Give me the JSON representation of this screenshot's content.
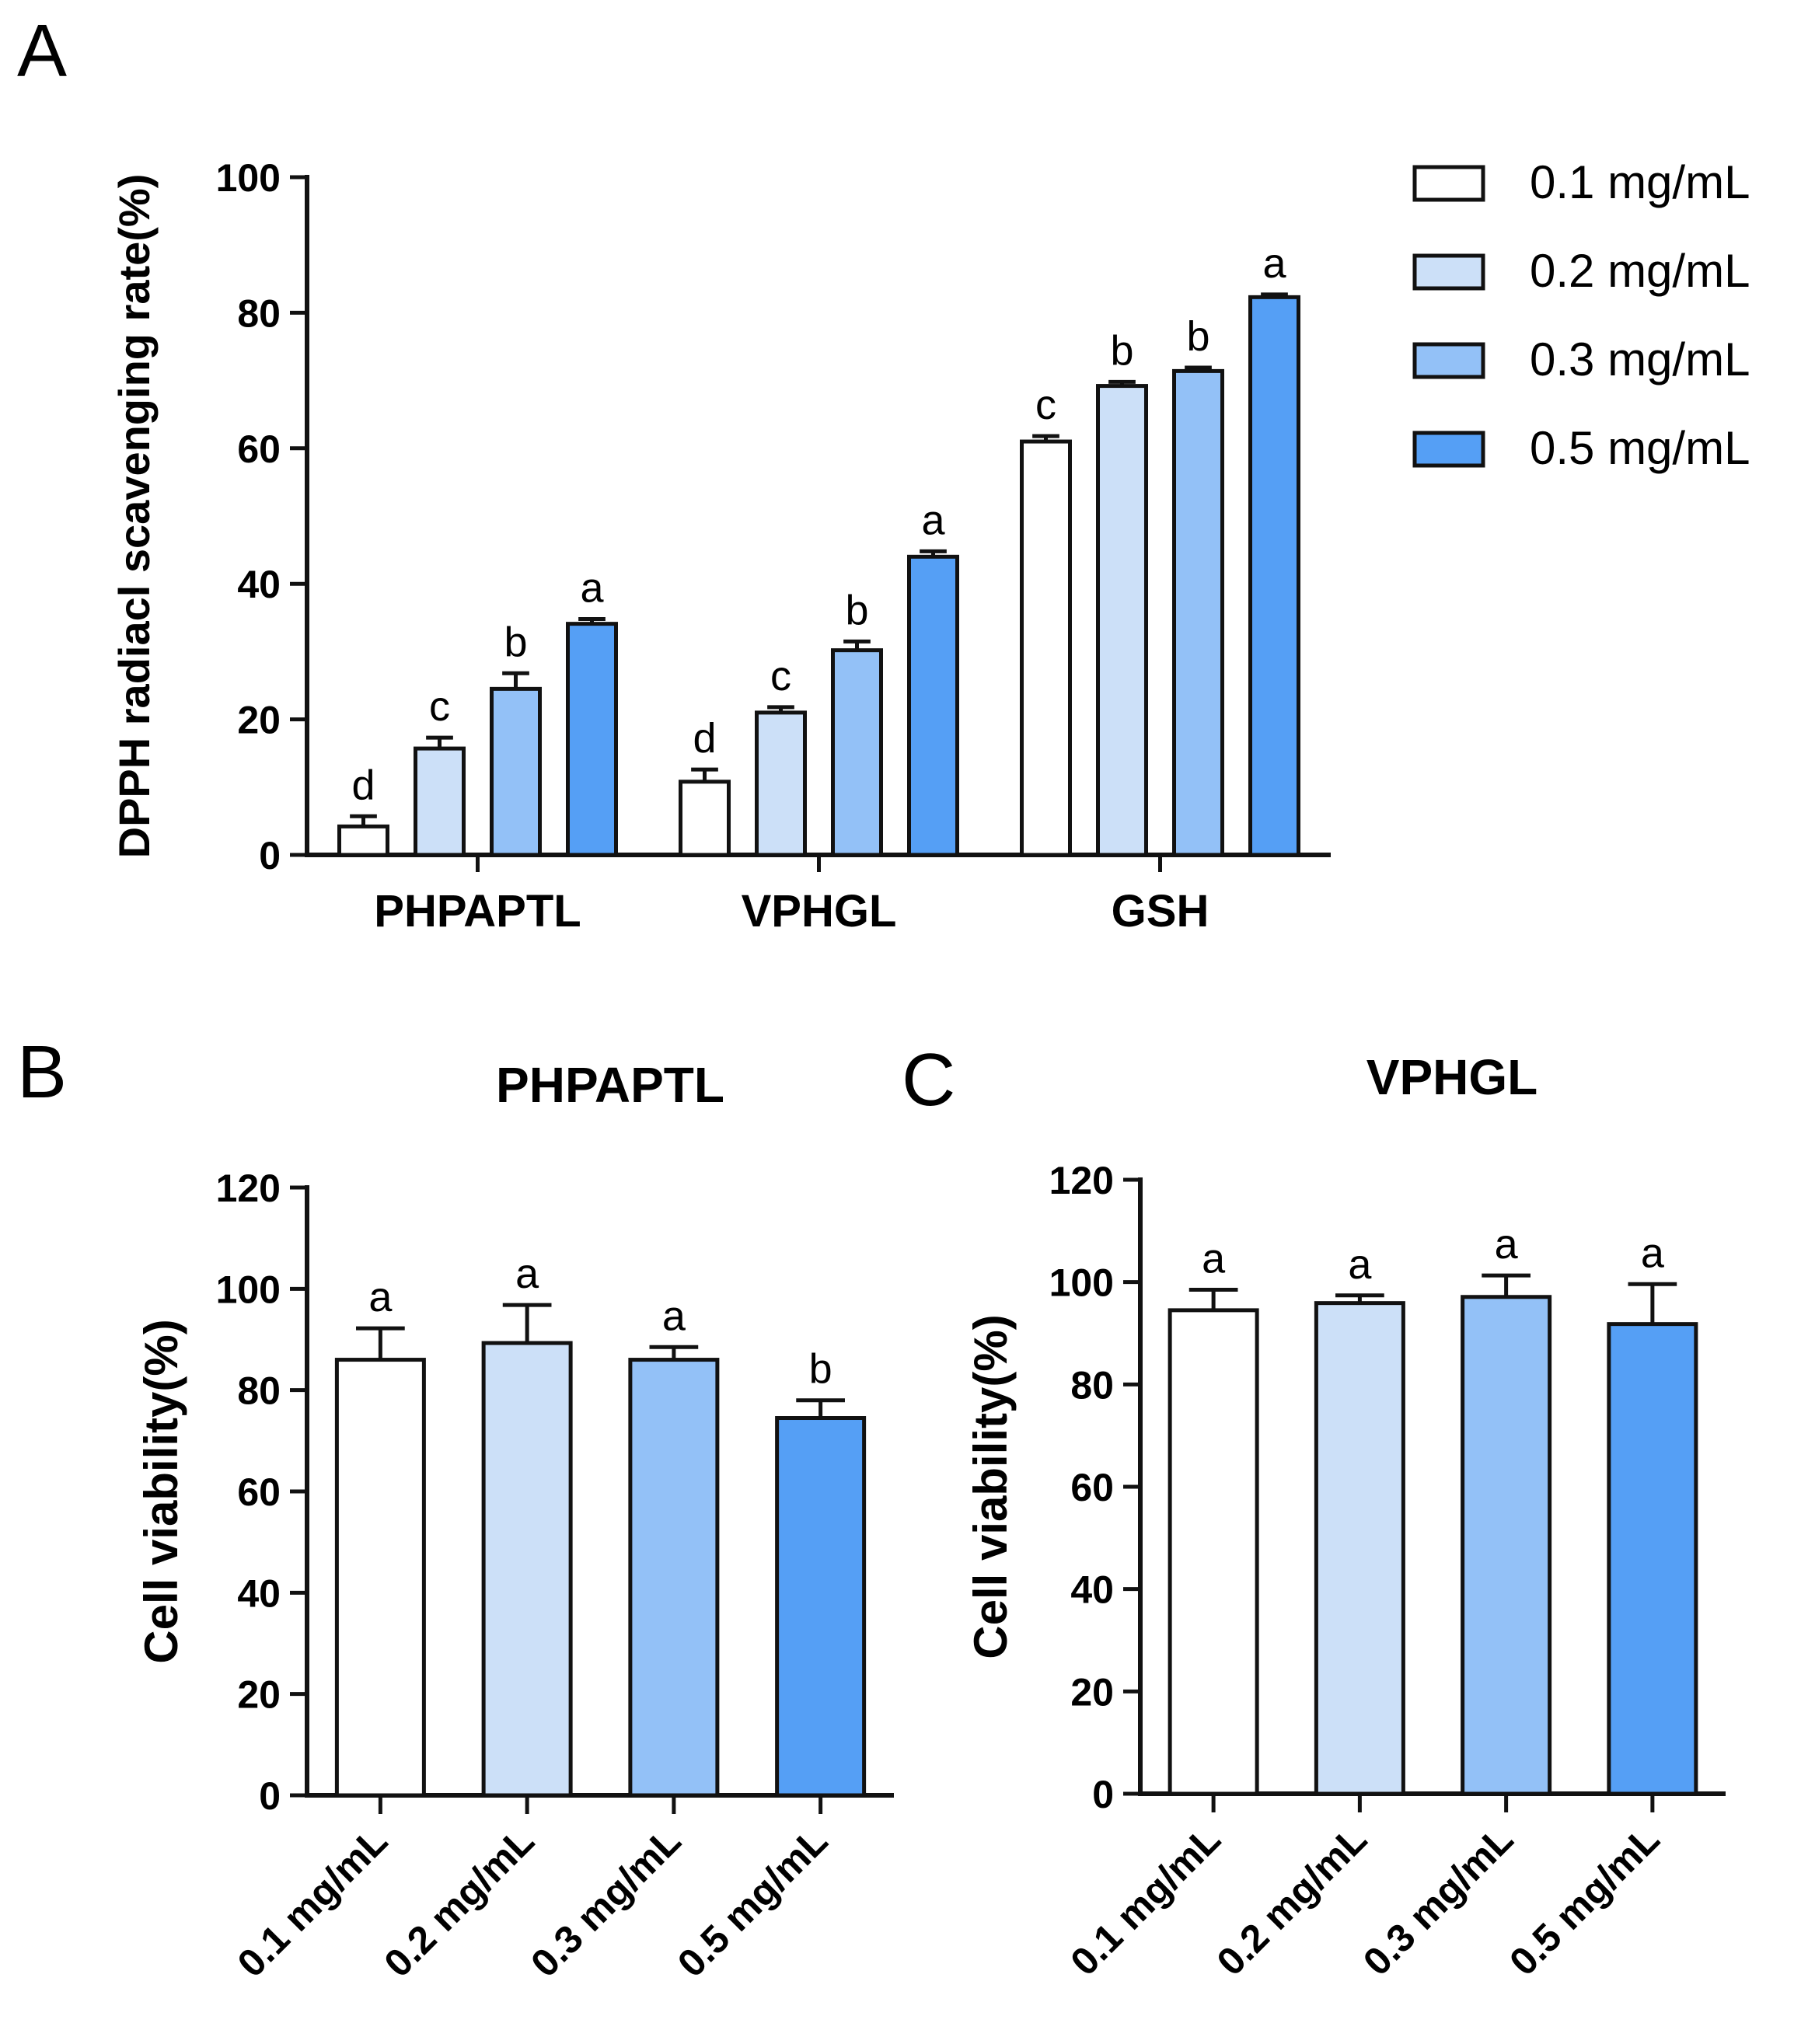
{
  "chart_data": [
    {
      "panel": "A",
      "type": "bar",
      "title": "",
      "ylabel": "DPPH radiacl scavenging rate(%)",
      "xlabel": "",
      "ylim": [
        0,
        100
      ],
      "yticks": [
        0,
        20,
        40,
        60,
        80,
        100
      ],
      "categories": [
        "PHPAPTL",
        "VPHGL",
        "GSH"
      ],
      "series": [
        {
          "name": "0.1 mg/mL",
          "color": "#ffffff",
          "values": [
            4.2,
            10.8,
            61.0
          ],
          "errors": [
            1.5,
            1.8,
            0.8
          ],
          "labels": [
            "d",
            "d",
            "c"
          ]
        },
        {
          "name": "0.2 mg/mL",
          "color": "#cce0f8",
          "values": [
            15.7,
            21.0,
            69.2
          ],
          "errors": [
            1.6,
            0.8,
            0.6
          ],
          "labels": [
            "c",
            "c",
            "b"
          ]
        },
        {
          "name": "0.3 mg/mL",
          "color": "#93c1f7",
          "values": [
            24.5,
            30.2,
            71.4
          ],
          "errors": [
            2.3,
            1.3,
            0.5
          ],
          "labels": [
            "b",
            "b",
            "b"
          ]
        },
        {
          "name": "0.5 mg/mL",
          "color": "#559ff5",
          "values": [
            34.1,
            44.0,
            82.3
          ],
          "errors": [
            0.7,
            0.8,
            0.4
          ],
          "labels": [
            "a",
            "a",
            "a"
          ]
        }
      ],
      "legend_position": "right"
    },
    {
      "panel": "B",
      "type": "bar",
      "title": "PHPAPTL",
      "ylabel": "Cell viability(%)",
      "xlabel": "",
      "ylim": [
        0,
        120
      ],
      "yticks": [
        0,
        20,
        40,
        60,
        80,
        100,
        120
      ],
      "categories": [
        "0.1 mg/mL",
        "0.2 mg/mL",
        "0.3 mg/mL",
        "0.5 mg/mL"
      ],
      "colors": [
        "#ffffff",
        "#cce0f8",
        "#93c1f7",
        "#559ff5"
      ],
      "values": [
        86.0,
        89.3,
        86.0,
        74.5
      ],
      "errors": [
        6.2,
        7.5,
        2.5,
        3.5
      ],
      "labels": [
        "a",
        "a",
        "a",
        "b"
      ]
    },
    {
      "panel": "C",
      "type": "bar",
      "title": "VPHGL",
      "ylabel": "Cell viability(%)",
      "xlabel": "",
      "ylim": [
        0,
        120
      ],
      "yticks": [
        0,
        20,
        40,
        60,
        80,
        100,
        120
      ],
      "categories": [
        "0.1 mg/mL",
        "0.2 mg/mL",
        "0.3 mg/mL",
        "0.5 mg/mL"
      ],
      "colors": [
        "#ffffff",
        "#cce0f8",
        "#93c1f7",
        "#559ff5"
      ],
      "values": [
        94.5,
        95.9,
        97.1,
        91.8
      ],
      "errors": [
        4.0,
        1.5,
        4.2,
        7.8
      ],
      "labels": [
        "a",
        "a",
        "a",
        "a"
      ]
    }
  ]
}
